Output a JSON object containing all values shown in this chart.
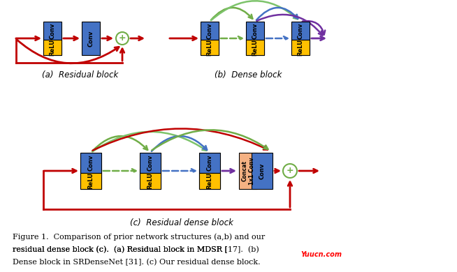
{
  "bg_color": "#ffffff",
  "title_text": "Figure 1. Comparison of prior network structures (a,b) and our\nresidual dense block (c).  (a) Residual block in MDSR [17].  (b)\nDense block in SRDenseNet [31]. (c) Our residual dense block.",
  "label_a": "(a)  Residual block",
  "label_b": "(b)  Dense block",
  "label_c": "(c)  Residual dense block",
  "conv_color": "#4472c4",
  "relu_color": "#ffc000",
  "concat_color": "#f4b183",
  "add_color": "#70ad47",
  "arrow_red": "#c00000",
  "arrow_green": "#70ad47",
  "arrow_blue": "#4472c4",
  "arrow_purple": "#7030a0",
  "arrow_olive": "#9dc384",
  "watermark": "Yuucn.com",
  "watermark_color": "#ff0000"
}
